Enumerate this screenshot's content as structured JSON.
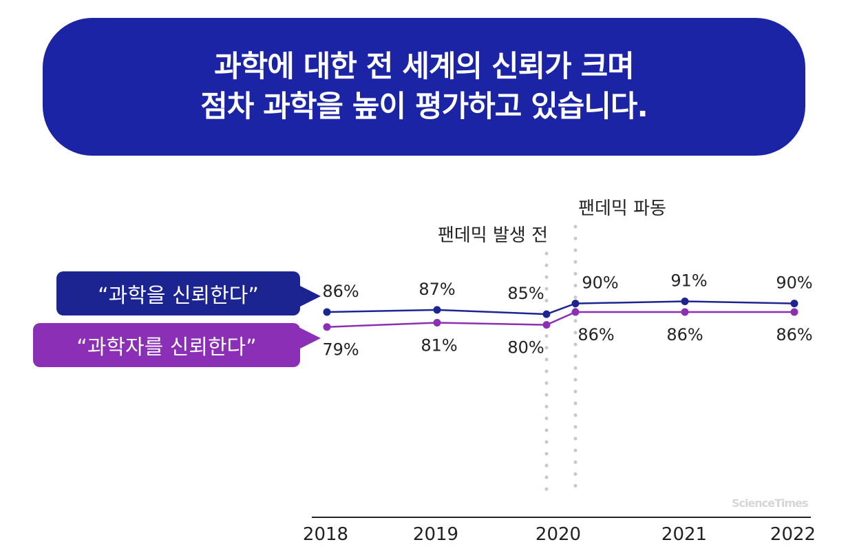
{
  "title": {
    "line1": "과학에 대한 전 세계의 신뢰가 크며",
    "line2": "점차 과학을 높이 평가하고 있습니다."
  },
  "legend": {
    "trust_science": "“과학을 신뢰한다”",
    "trust_scientists": "“과학자를 신뢰한다”"
  },
  "annotations": {
    "pre_pandemic": "팬데믹 발생 전",
    "pandemic_wave": "팬데믹 파동"
  },
  "watermark": "ScienceTimes",
  "colors": {
    "banner": "#1c24a6",
    "trust_science": "#1c2491",
    "trust_scientists": "#8a2fb6",
    "axis": "#222222",
    "dotted_line": "#c8c8c8"
  },
  "chart_data": {
    "type": "line",
    "x_ticks": [
      "2018",
      "2019",
      "2020",
      "2021",
      "2022"
    ],
    "series": [
      {
        "name": "“과학을 신뢰한다”",
        "points": [
          {
            "x": "2018",
            "y": 86,
            "label": "86%"
          },
          {
            "x": "2019",
            "y": 87,
            "label": "87%"
          },
          {
            "x": "2020 (팬데믹 발생 전)",
            "y": 85,
            "label": "85%"
          },
          {
            "x": "2020 (팬데믹 파동)",
            "y": 90,
            "label": "90%"
          },
          {
            "x": "2021",
            "y": 91,
            "label": "91%"
          },
          {
            "x": "2022",
            "y": 90,
            "label": "90%"
          }
        ]
      },
      {
        "name": "“과학자를 신뢰한다”",
        "points": [
          {
            "x": "2018",
            "y": 79,
            "label": "79%"
          },
          {
            "x": "2019",
            "y": 81,
            "label": "81%"
          },
          {
            "x": "2020 (팬데믹 발생 전)",
            "y": 80,
            "label": "80%"
          },
          {
            "x": "2020 (팬데믹 파동)",
            "y": 86,
            "label": "86%"
          },
          {
            "x": "2021",
            "y": 86,
            "label": "86%"
          },
          {
            "x": "2022",
            "y": 86,
            "label": "86%"
          }
        ]
      }
    ],
    "y_unit": "%",
    "grid": false,
    "legend_placement": "left"
  }
}
